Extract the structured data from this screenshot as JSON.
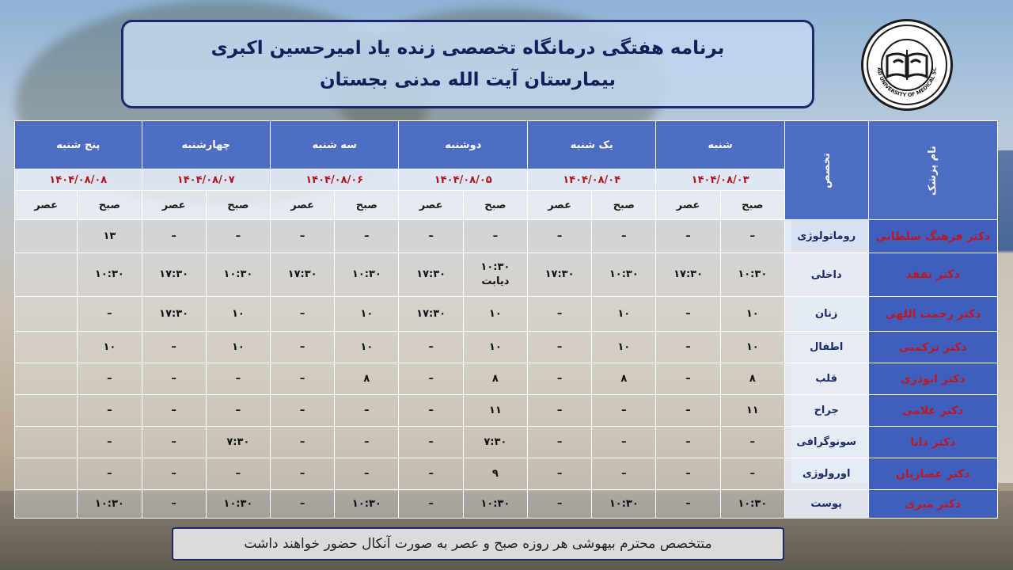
{
  "header": {
    "title_line1": "برنامه هفتگی درمانگاه تخصصی زنده یاد امیرحسین اکبری",
    "title_line2": "بیمارستان آیت الله مدنی بجستان"
  },
  "logo": {
    "icon": "university-seal-icon",
    "caption": "GONABAD UNIVERSITY OF MEDICAL SCIENCES"
  },
  "table": {
    "col_doctor": "نام پزشک",
    "col_specialty": "تخصص",
    "shift_morning": "صبح",
    "shift_afternoon": "عصر",
    "days": [
      {
        "name": "شنبه",
        "date": "۱۴۰۴/۰۸/۰۳"
      },
      {
        "name": "یک شنبه",
        "date": "۱۴۰۴/۰۸/۰۴"
      },
      {
        "name": "دوشنبه",
        "date": "۱۴۰۴/۰۸/۰۵"
      },
      {
        "name": "سه شنبه",
        "date": "۱۴۰۴/۰۸/۰۶"
      },
      {
        "name": "چهارشنبه",
        "date": "۱۴۰۴/۰۸/۰۷"
      },
      {
        "name": "پنج شنبه",
        "date": "۱۴۰۴/۰۸/۰۸"
      }
    ],
    "rows": [
      {
        "doctor": "دکتر فرهنگ سلطانی",
        "specialty": "روماتولوژی",
        "cells": [
          "–",
          "–",
          "–",
          "–",
          "–",
          "–",
          "–",
          "–",
          "–",
          "–",
          "۱۳",
          ""
        ]
      },
      {
        "doctor": "دکتر تفقد",
        "specialty": "داخلی",
        "cells": [
          "۱۰:۳۰",
          "۱۷:۳۰",
          "۱۰:۳۰",
          "۱۷:۳۰",
          "۱۰:۳۰\nدیابت",
          "۱۷:۳۰",
          "۱۰:۳۰",
          "۱۷:۳۰",
          "۱۰:۳۰",
          "۱۷:۳۰",
          "۱۰:۳۰",
          ""
        ]
      },
      {
        "doctor": "دکتر رحمت اللهی",
        "specialty": "زنان",
        "cells": [
          "۱۰",
          "–",
          "۱۰",
          "–",
          "۱۰",
          "۱۷:۳۰",
          "۱۰",
          "–",
          "۱۰",
          "۱۷:۳۰",
          "–",
          ""
        ]
      },
      {
        "doctor": "دکتر ترکمنی",
        "specialty": "اطفال",
        "cells": [
          "۱۰",
          "–",
          "۱۰",
          "–",
          "۱۰",
          "–",
          "۱۰",
          "–",
          "۱۰",
          "–",
          "۱۰",
          ""
        ]
      },
      {
        "doctor": "دکتر ابوذری",
        "specialty": "قلب",
        "cells": [
          "۸",
          "–",
          "۸",
          "–",
          "۸",
          "–",
          "۸",
          "–",
          "–",
          "–",
          "–",
          ""
        ]
      },
      {
        "doctor": "دکتر غلامی",
        "specialty": "جراح",
        "cells": [
          "۱۱",
          "–",
          "–",
          "–",
          "۱۱",
          "–",
          "–",
          "–",
          "–",
          "–",
          "–",
          ""
        ]
      },
      {
        "doctor": "دکتر دانا",
        "specialty": "سونوگرافی",
        "cells": [
          "–",
          "–",
          "–",
          "–",
          "۷:۳۰",
          "–",
          "–",
          "–",
          "۷:۳۰",
          "–",
          "–",
          ""
        ]
      },
      {
        "doctor": "دکتر عصاریان",
        "specialty": "اورولوژی",
        "cells": [
          "–",
          "–",
          "–",
          "–",
          "۹",
          "–",
          "–",
          "–",
          "–",
          "–",
          "–",
          ""
        ]
      },
      {
        "doctor": "دکتر میری",
        "specialty": "پوست",
        "cells": [
          "۱۰:۳۰",
          "–",
          "۱۰:۳۰",
          "–",
          "۱۰:۳۰",
          "–",
          "۱۰:۳۰",
          "–",
          "۱۰:۳۰",
          "–",
          "۱۰:۳۰",
          ""
        ]
      }
    ]
  },
  "footer": {
    "note": "متتخصص محترم بیهوشی هر روزه صبح و عصر به صورت آنکال حضور خواهند داشت"
  }
}
